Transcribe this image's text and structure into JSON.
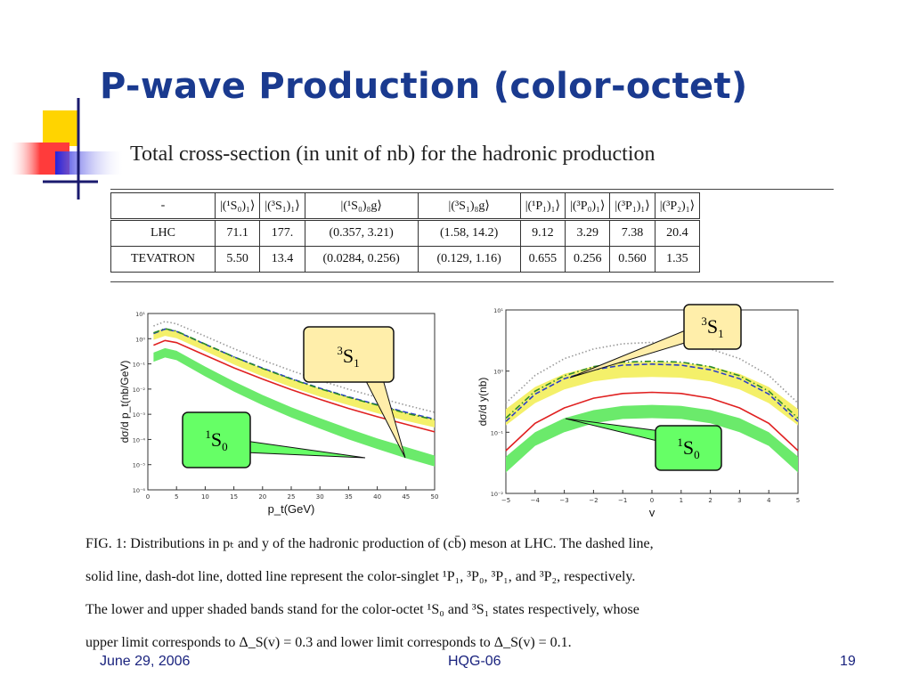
{
  "slide": {
    "title": "P-wave Production  (color-octet)",
    "subtitle": "Total cross-section (in unit of nb) for the hadronic production"
  },
  "table": {
    "headers": [
      "-",
      "|(¹S₀)₁⟩",
      "|(³S₁)₁⟩",
      "|(¹S₀)₈g⟩",
      "|(³S₁)₈g⟩",
      "|(¹P₁)₁⟩",
      "|(³P₀)₁⟩",
      "|(³P₁)₁⟩",
      "|(³P₂)₁⟩"
    ],
    "rows": [
      [
        "LHC",
        "71.1",
        "177.",
        "(0.357, 3.21)",
        "(1.58, 14.2)",
        "9.12",
        "3.29",
        "7.38",
        "20.4"
      ],
      [
        "TEVATRON",
        "5.50",
        "13.4",
        "(0.0284, 0.256)",
        "(0.129, 1.16)",
        "0.655",
        "0.256",
        "0.560",
        "1.35"
      ]
    ]
  },
  "callouts": {
    "left_3S1": {
      "sup": "3",
      "main": "S",
      "sub": "1"
    },
    "left_1S0": {
      "sup": "1",
      "main": "S",
      "sub": "0"
    },
    "right_3S1": {
      "sup": "3",
      "main": "S",
      "sub": "1"
    },
    "right_1S0": {
      "sup": "1",
      "main": "S",
      "sub": "0"
    }
  },
  "chart_data": [
    {
      "type": "line",
      "xlabel": "p_t(GeV)",
      "ylabel": "dσ/d p_t(nb/GeV)",
      "xlim": [
        0,
        50
      ],
      "ylim_log10": [
        -6,
        1
      ],
      "x_ticks": [
        "0",
        "5",
        "10",
        "15",
        "20",
        "25",
        "30",
        "35",
        "40",
        "45",
        "50"
      ],
      "y_ticks": [
        "10⁻⁶",
        "10⁻⁵",
        "10⁻⁴",
        "10⁻³",
        "10⁻²",
        "10⁻¹",
        "10⁰",
        "10¹"
      ],
      "x": [
        1,
        3,
        5,
        10,
        15,
        20,
        25,
        30,
        35,
        40,
        45,
        50
      ],
      "series": [
        {
          "key": "band_3S1",
          "style": "band",
          "color": "#f4f06a",
          "lower": [
            0.9,
            1.3,
            1.05,
            0.32,
            0.095,
            0.032,
            0.012,
            0.005,
            0.0023,
            0.0011,
            0.00055,
            0.0003
          ],
          "upper": [
            1.8,
            2.6,
            2.1,
            0.62,
            0.19,
            0.066,
            0.025,
            0.0105,
            0.0048,
            0.0024,
            0.0012,
            0.00065
          ]
        },
        {
          "key": "band_1S0",
          "style": "band",
          "color": "#6bea6b",
          "lower": [
            0.12,
            0.18,
            0.14,
            0.032,
            0.008,
            0.0023,
            0.00075,
            0.00027,
            0.0001,
            4.2e-05,
            1.8e-05,
            8.5e-06
          ],
          "upper": [
            0.28,
            0.42,
            0.33,
            0.078,
            0.02,
            0.0058,
            0.0019,
            0.0007,
            0.00027,
            0.00011,
            5e-05,
            2.3e-05
          ]
        },
        {
          "key": "dotted",
          "style": "dotted",
          "color": "#999999",
          "y": [
            3.2,
            4.8,
            3.9,
            1.25,
            0.4,
            0.14,
            0.054,
            0.022,
            0.0098,
            0.0047,
            0.0023,
            0.0012
          ]
        },
        {
          "key": "dashed",
          "style": "dashed",
          "color": "#2a3fc8",
          "y": [
            1.6,
            2.4,
            1.95,
            0.6,
            0.19,
            0.068,
            0.026,
            0.0108,
            0.0049,
            0.0024,
            0.0012,
            0.00064
          ]
        },
        {
          "key": "dashdot",
          "style": "dashdot",
          "color": "#2a8a2a",
          "y": [
            1.7,
            2.5,
            2.0,
            0.61,
            0.19,
            0.066,
            0.025,
            0.0104,
            0.0047,
            0.0023,
            0.0011,
            0.0006
          ]
        },
        {
          "key": "solid",
          "style": "solid",
          "color": "#e02020",
          "y": [
            0.55,
            0.85,
            0.7,
            0.22,
            0.07,
            0.025,
            0.0095,
            0.0039,
            0.0017,
            0.0008,
            0.0004,
            0.0002
          ]
        }
      ]
    },
    {
      "type": "line",
      "xlabel": "y",
      "ylabel": "dσ/d y(nb)",
      "xlim": [
        -5,
        5
      ],
      "ylim_log10": [
        -2,
        1
      ],
      "x_ticks": [
        "−5",
        "−4",
        "−3",
        "−2",
        "−1",
        "0",
        "1",
        "2",
        "3",
        "4",
        "5"
      ],
      "y_ticks": [
        "10⁻²",
        "10⁻¹",
        "10⁰",
        "10¹"
      ],
      "x": [
        -5,
        -4,
        -3,
        -2,
        -1,
        0,
        1,
        2,
        3,
        4,
        5
      ],
      "series": [
        {
          "key": "band_3S1",
          "style": "band",
          "color": "#f4f06a",
          "lower": [
            0.13,
            0.3,
            0.5,
            0.68,
            0.78,
            0.8,
            0.78,
            0.68,
            0.5,
            0.3,
            0.13
          ],
          "upper": [
            0.24,
            0.55,
            0.9,
            1.2,
            1.38,
            1.42,
            1.38,
            1.2,
            0.9,
            0.55,
            0.24
          ]
        },
        {
          "key": "band_1S0",
          "style": "band",
          "color": "#6bea6b",
          "lower": [
            0.022,
            0.06,
            0.1,
            0.14,
            0.165,
            0.17,
            0.165,
            0.14,
            0.1,
            0.06,
            0.022
          ],
          "upper": [
            0.04,
            0.1,
            0.17,
            0.23,
            0.27,
            0.28,
            0.27,
            0.23,
            0.17,
            0.1,
            0.04
          ]
        },
        {
          "key": "dotted",
          "style": "dotted",
          "color": "#999999",
          "y": [
            0.3,
            0.85,
            1.6,
            2.3,
            2.8,
            2.95,
            2.8,
            2.3,
            1.6,
            0.85,
            0.3
          ]
        },
        {
          "key": "dashed",
          "style": "dashed",
          "color": "#2a3fc8",
          "y": [
            0.15,
            0.42,
            0.75,
            1.05,
            1.25,
            1.3,
            1.25,
            1.05,
            0.75,
            0.42,
            0.15
          ]
        },
        {
          "key": "dashdot",
          "style": "dashdot",
          "color": "#2a8a2a",
          "y": [
            0.17,
            0.47,
            0.84,
            1.18,
            1.4,
            1.45,
            1.4,
            1.18,
            0.84,
            0.47,
            0.17
          ]
        },
        {
          "key": "solid",
          "style": "solid",
          "color": "#e02020",
          "y": [
            0.05,
            0.14,
            0.25,
            0.36,
            0.43,
            0.45,
            0.43,
            0.36,
            0.25,
            0.14,
            0.05
          ]
        }
      ]
    }
  ],
  "caption": {
    "lines": [
      "FIG. 1: Distributions in pₜ and y of the hadronic production of (cb̄) meson at LHC. The dashed line,",
      "solid line, dash-dot line, dotted line represent the color-singlet ¹P₁, ³P₀, ³P₁, and ³P₂, respectively.",
      "The lower and upper shaded bands stand for the color-octet ¹S₀ and ³S₁ states respectively, whose",
      "upper limit corresponds to Δ_S(v) = 0.3 and lower limit corresponds to Δ_S(v) = 0.1."
    ]
  },
  "footer": {
    "date": "June 29, 2006",
    "event": "HQG-06",
    "page": "19"
  }
}
